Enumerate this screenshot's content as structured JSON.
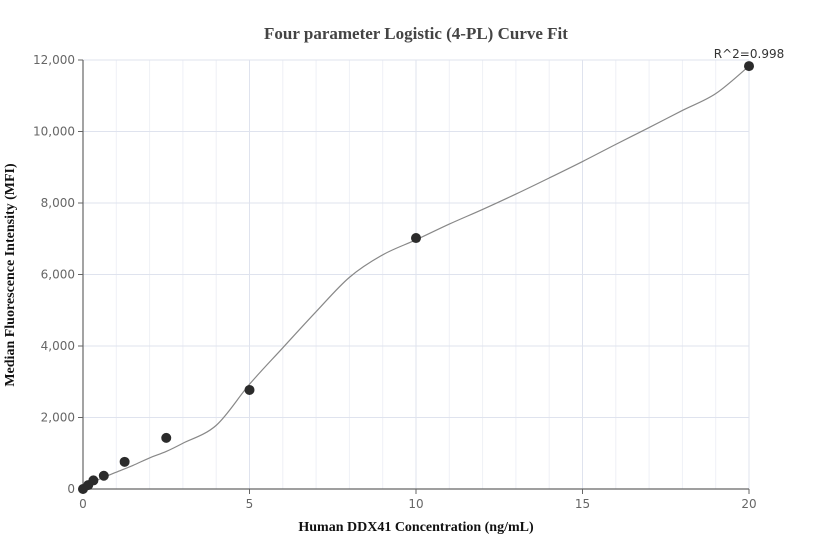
{
  "chart_data": {
    "type": "scatter",
    "title": "Four parameter Logistic (4-PL) Curve Fit",
    "xlabel": "Human DDX41 Concentration (ng/mL)",
    "ylabel": "Median Fluorescence Intensity (MFI)",
    "xlim": [
      0,
      20
    ],
    "ylim": [
      0,
      12000
    ],
    "x_ticks": [
      0,
      5,
      10,
      15,
      20
    ],
    "x_tick_labels": [
      "0",
      "5",
      "10",
      "15",
      "20"
    ],
    "y_ticks": [
      0,
      2000,
      4000,
      6000,
      8000,
      10000,
      12000
    ],
    "y_tick_labels": [
      "0",
      "2,000",
      "4,000",
      "6,000",
      "8,000",
      "10,000",
      "12,000"
    ],
    "x_minor_step": 1,
    "grid": true,
    "legend": "none",
    "annotation": "R^2=0.998",
    "series": [
      {
        "name": "Measured points",
        "type": "scatter",
        "color": "#2b2b2b",
        "x": [
          0,
          0.156,
          0.3125,
          0.625,
          1.25,
          2.5,
          5,
          10,
          20
        ],
        "y": [
          0,
          110,
          240,
          370,
          760,
          1430,
          2770,
          7020,
          11830
        ]
      },
      {
        "name": "4-PL fit",
        "type": "line",
        "color": "#888888",
        "x": [
          0,
          0.5,
          1,
          1.5,
          2,
          2.5,
          3,
          4,
          5,
          6,
          7,
          8,
          9,
          10,
          11,
          12,
          13,
          14,
          15,
          16,
          17,
          18,
          19,
          20
        ],
        "y": [
          60,
          280,
          470,
          660,
          870,
          1050,
          1280,
          1780,
          2930,
          3950,
          4960,
          5920,
          6550,
          6970,
          7410,
          7820,
          8250,
          8700,
          9160,
          9640,
          10110,
          10590,
          11060,
          11830
        ]
      }
    ]
  }
}
